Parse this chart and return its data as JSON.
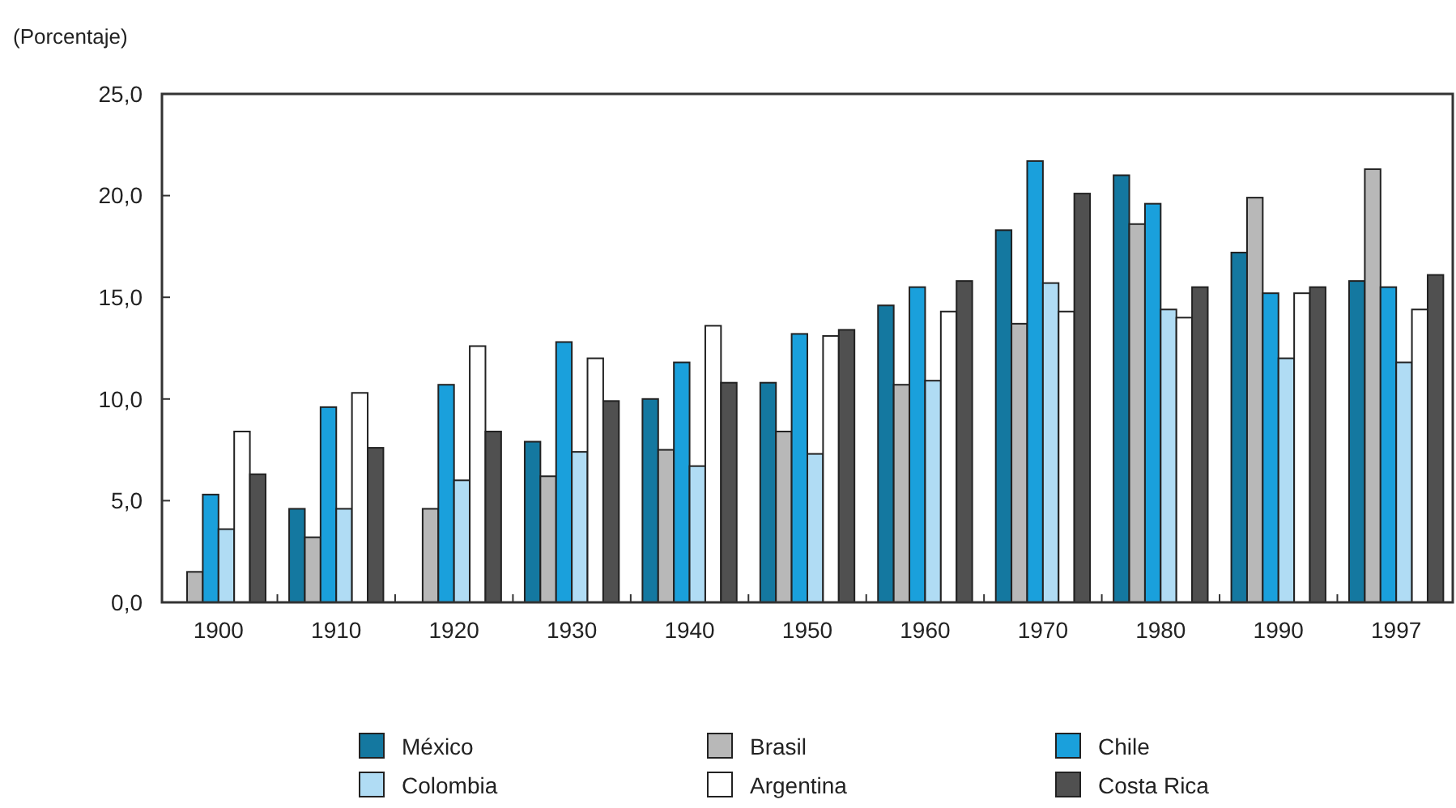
{
  "chart_data": {
    "type": "bar",
    "ylabel": "(Porcentaje)",
    "categories": [
      "1900",
      "1910",
      "1920",
      "1930",
      "1940",
      "1950",
      "1960",
      "1970",
      "1980",
      "1990",
      "1997"
    ],
    "series": [
      {
        "name": "México",
        "color": "#1478a0",
        "values": [
          null,
          4.6,
          null,
          7.9,
          10.0,
          10.8,
          14.6,
          18.3,
          21.0,
          17.2,
          15.8
        ]
      },
      {
        "name": "Brasil",
        "color": "#b8b8b8",
        "values": [
          1.5,
          3.2,
          4.6,
          6.2,
          7.5,
          8.4,
          10.7,
          13.7,
          18.6,
          19.9,
          21.3
        ]
      },
      {
        "name": "Chile",
        "color": "#1aa0dc",
        "values": [
          5.3,
          9.6,
          10.7,
          12.8,
          11.8,
          13.2,
          15.5,
          21.7,
          19.6,
          15.2,
          15.5
        ]
      },
      {
        "name": "Colombia",
        "color": "#b0dcf4",
        "values": [
          3.6,
          4.6,
          6.0,
          7.4,
          6.7,
          7.3,
          10.9,
          15.7,
          14.4,
          12.0,
          11.8
        ]
      },
      {
        "name": "Argentina",
        "color": "#ffffff",
        "values": [
          8.4,
          10.3,
          12.6,
          12.0,
          13.6,
          13.1,
          14.3,
          14.3,
          14.0,
          15.2,
          14.4
        ]
      },
      {
        "name": "Costa Rica",
        "color": "#505050",
        "values": [
          6.3,
          7.6,
          8.4,
          9.9,
          10.8,
          13.4,
          15.8,
          20.1,
          15.5,
          15.5,
          16.1
        ]
      }
    ],
    "ylim": [
      0,
      25
    ],
    "yticks": [
      {
        "value": 0,
        "label": "0,0"
      },
      {
        "value": 5,
        "label": "5,0"
      },
      {
        "value": 10,
        "label": "10,0"
      },
      {
        "value": 15,
        "label": "15,0"
      },
      {
        "value": 20,
        "label": "20,0"
      },
      {
        "value": 25,
        "label": "25,0"
      }
    ],
    "grid": false,
    "legend": "bottom"
  }
}
